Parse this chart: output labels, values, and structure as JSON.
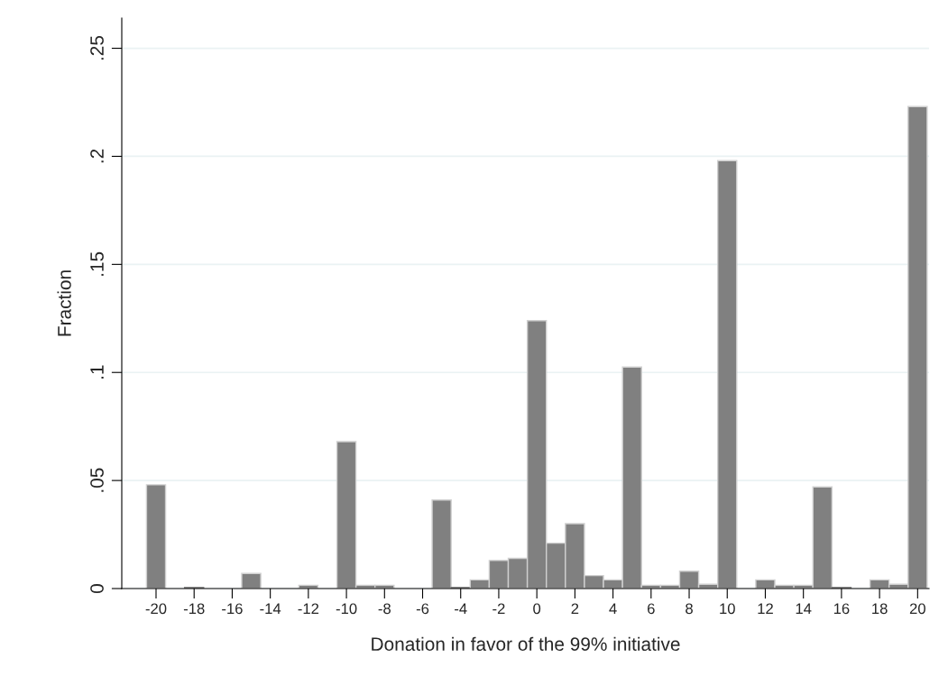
{
  "chart_data": {
    "type": "histogram",
    "xlabel": "Donation in favor of the 99% initiative",
    "ylabel": "Fraction",
    "bins": [
      -20.5,
      -19.5,
      -18.5,
      -17.5,
      -16.5,
      -15.5,
      -14.5,
      -13.5,
      -12.5,
      -11.5,
      -10.5,
      -9.5,
      -8.5,
      -7.5,
      -6.5,
      -5.5,
      -4.5,
      -3.5,
      -2.5,
      -1.5,
      -0.5,
      0.5,
      1.5,
      2.5,
      3.5,
      4.5,
      5.5,
      6.5,
      7.5,
      8.5,
      9.5,
      10.5,
      11.5,
      12.5,
      13.5,
      14.5,
      15.5,
      16.5,
      17.5,
      18.5,
      19.5,
      20.5
    ],
    "values": [
      0.048,
      0,
      0.0005,
      0,
      0,
      0.007,
      0,
      0,
      0.0015,
      0,
      0.068,
      0.0015,
      0.0015,
      0,
      0,
      0.041,
      0.0005,
      0.004,
      0.013,
      0.014,
      0.124,
      0.021,
      0.03,
      0.006,
      0.004,
      0.1025,
      0.0015,
      0.0015,
      0.008,
      0.002,
      0.198,
      0,
      0.004,
      0.0015,
      0.0015,
      0.047,
      0.0005,
      0,
      0.004,
      0.002,
      0.223
    ],
    "color": "#808080",
    "xlim": [
      -21.8,
      20.6
    ],
    "xticks": [
      -20,
      -18,
      -16,
      -14,
      -12,
      -10,
      -8,
      -6,
      -4,
      -2,
      0,
      2,
      4,
      6,
      8,
      10,
      12,
      14,
      16,
      18,
      20
    ],
    "ylim": [
      0,
      0.264
    ],
    "yticks": [
      {
        "value": 0,
        "label": "0"
      },
      {
        "value": 0.05,
        "label": ".05"
      },
      {
        "value": 0.1,
        "label": ".1"
      },
      {
        "value": 0.15,
        "label": ".15"
      },
      {
        "value": 0.2,
        "label": ".2"
      },
      {
        "value": 0.25,
        "label": ".25"
      }
    ],
    "grid": "y"
  }
}
